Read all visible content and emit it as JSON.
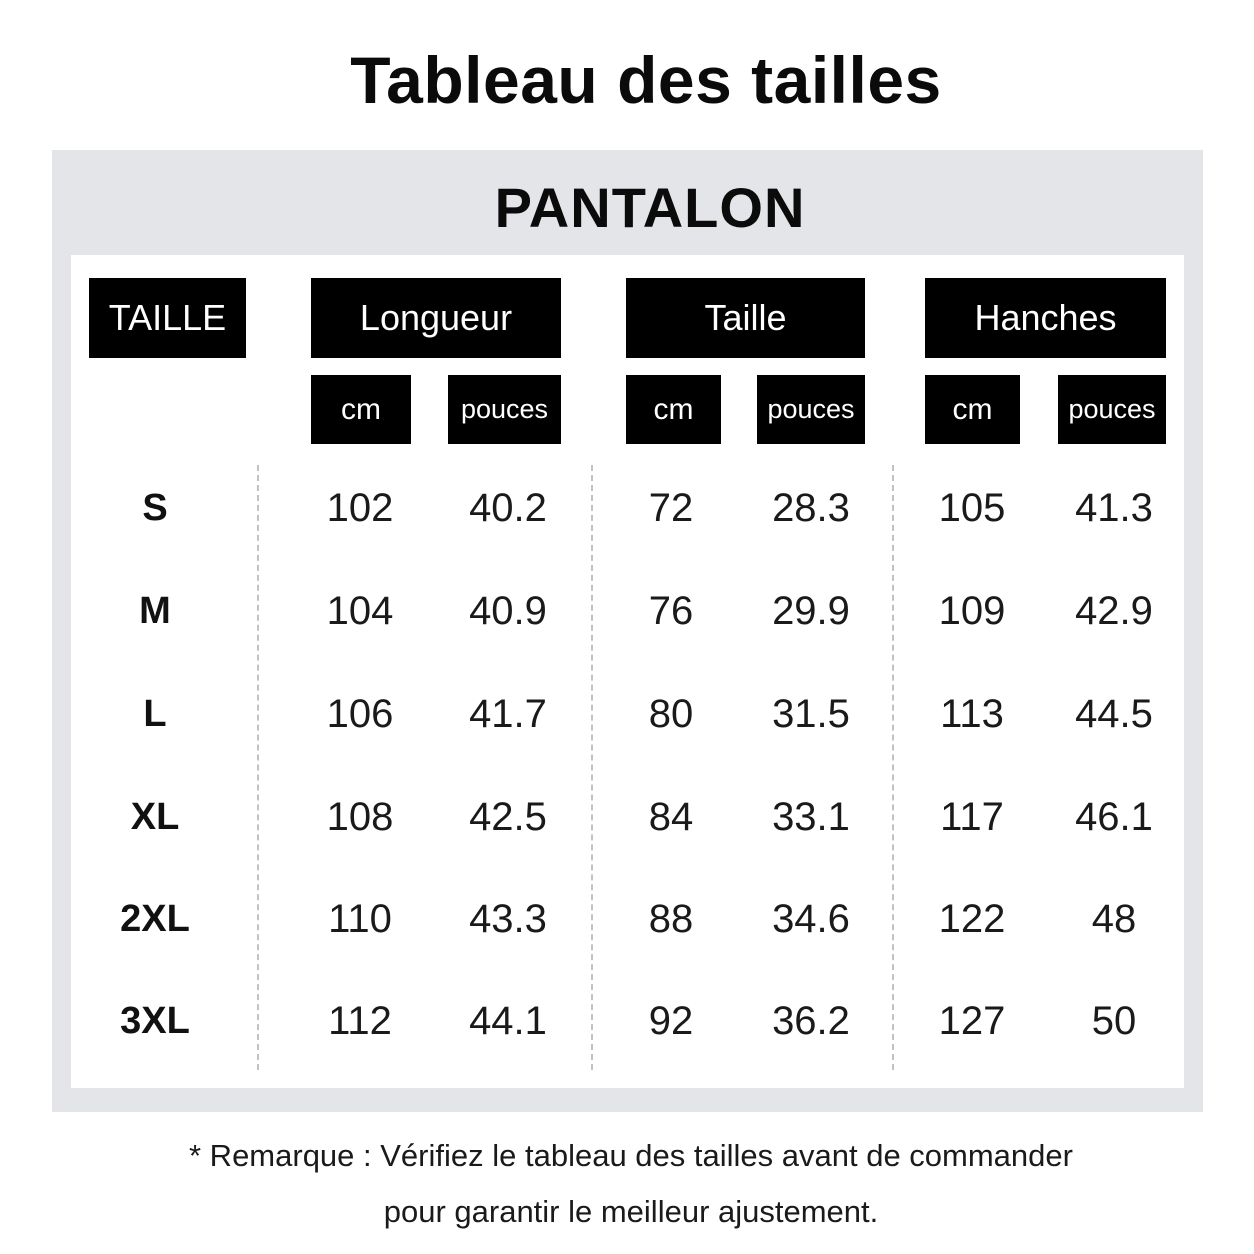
{
  "title": "Tableau des tailles",
  "section_title": "PANTALON",
  "headers": {
    "size": "TAILLE",
    "groups": [
      "Longueur",
      "Taille",
      "Hanches"
    ],
    "unit_cm": "cm",
    "unit_in": "pouces"
  },
  "rows": [
    {
      "size": "S",
      "values": [
        "102",
        "40.2",
        "72",
        "28.3",
        "105",
        "41.3"
      ]
    },
    {
      "size": "M",
      "values": [
        "104",
        "40.9",
        "76",
        "29.9",
        "109",
        "42.9"
      ]
    },
    {
      "size": "L",
      "values": [
        "106",
        "41.7",
        "80",
        "31.5",
        "113",
        "44.5"
      ]
    },
    {
      "size": "XL",
      "values": [
        "108",
        "42.5",
        "84",
        "33.1",
        "117",
        "46.1"
      ]
    },
    {
      "size": "2XL",
      "values": [
        "110",
        "43.3",
        "88",
        "34.6",
        "122",
        "48"
      ]
    },
    {
      "size": "3XL",
      "values": [
        "112",
        "44.1",
        "92",
        "36.2",
        "127",
        "50"
      ]
    }
  ],
  "note": {
    "line1": "* Remarque : Vérifiez le tableau des tailles avant de commander",
    "line2": "pour garantir le meilleur ajustement."
  },
  "colors": {
    "panel_background": "#e4e5e9",
    "header_background": "#000000",
    "header_text": "#ffffff",
    "divider": "#c2c2c2"
  }
}
